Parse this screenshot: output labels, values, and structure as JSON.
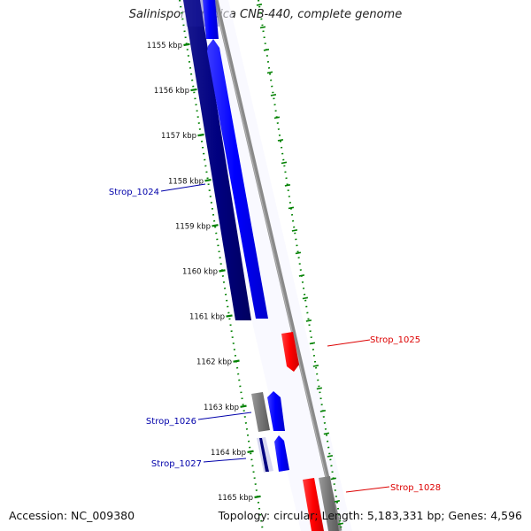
{
  "title": "Salinispora tropica CNB-440, complete genome",
  "footer": {
    "accession": "Accession: NC_009380",
    "summary": "Topology: circular; Length: 5,183,331 bp; Genes: 4,596"
  },
  "colors": {
    "backbone": "#808080",
    "forward_gene": "#0000ff",
    "reverse_gene": "#000080",
    "rna_or_other": "#ff0000",
    "pseudo": "#808080",
    "scale_ticks": "#008000",
    "label_forward": "#0000aa",
    "label_reverse": "#dd0000"
  },
  "scale": {
    "unit": "kbp",
    "ticks": [
      "1155 kbp",
      "1156 kbp",
      "1157 kbp",
      "1158 kbp",
      "1159 kbp",
      "1160 kbp",
      "1161 kbp",
      "1162 kbp",
      "1163 kbp",
      "1164 kbp",
      "1165 kbp"
    ]
  },
  "gene_labels": [
    {
      "text": "Strop_1024",
      "side": "left"
    },
    {
      "text": "Strop_1025",
      "side": "right"
    },
    {
      "text": "Strop_1026",
      "side": "left"
    },
    {
      "text": "Strop_1027",
      "side": "left"
    },
    {
      "text": "Strop_1028",
      "side": "right"
    }
  ]
}
